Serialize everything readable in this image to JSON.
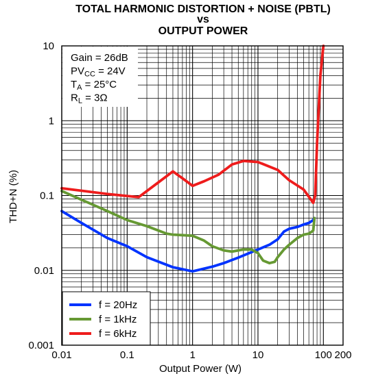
{
  "chart_data": {
    "type": "line",
    "title_lines": [
      "TOTAL HARMONIC DISTORTION + NOISE (PBTL)",
      "vs",
      "OUTPUT POWER"
    ],
    "xlabel": "Output Power (W)",
    "ylabel": "THD+N (%)",
    "x_scale": "log",
    "y_scale": "log",
    "xlim": [
      0.01,
      200
    ],
    "ylim": [
      0.001,
      10
    ],
    "x_ticks": [
      {
        "value": 0.01,
        "label": "0.01"
      },
      {
        "value": 0.1,
        "label": "0.1"
      },
      {
        "value": 1,
        "label": "1"
      },
      {
        "value": 10,
        "label": "10"
      },
      {
        "value": 100,
        "label": "100"
      },
      {
        "value": 200,
        "label": "200"
      }
    ],
    "y_ticks": [
      {
        "value": 0.001,
        "label": "0.001"
      },
      {
        "value": 0.01,
        "label": "0.01"
      },
      {
        "value": 0.1,
        "label": "0.1"
      },
      {
        "value": 1,
        "label": "1"
      },
      {
        "value": 10,
        "label": "10"
      }
    ],
    "grid": true,
    "legend_position": "bottom-left",
    "conditions": [
      {
        "key": "gain",
        "parts": [
          {
            "t": "Gain = 26dB"
          }
        ]
      },
      {
        "key": "pvcc",
        "parts": [
          {
            "t": "PV"
          },
          {
            "t": "CC",
            "sub": true
          },
          {
            "t": " = 24V"
          }
        ]
      },
      {
        "key": "ta",
        "parts": [
          {
            "t": "T"
          },
          {
            "t": "A",
            "sub": true
          },
          {
            "t": " = 25°C"
          }
        ]
      },
      {
        "key": "rl",
        "parts": [
          {
            "t": "R"
          },
          {
            "t": "L",
            "sub": true
          },
          {
            "t": " = 3Ω"
          }
        ]
      }
    ],
    "series": [
      {
        "name": "f = 20Hz",
        "color": "#0033ff",
        "x": [
          0.01,
          0.02,
          0.05,
          0.1,
          0.2,
          0.5,
          1,
          2,
          3,
          5,
          10,
          15,
          20,
          25,
          30,
          40,
          50,
          60,
          70,
          73
        ],
        "y": [
          0.062,
          0.043,
          0.027,
          0.021,
          0.015,
          0.011,
          0.0097,
          0.0112,
          0.0125,
          0.0148,
          0.019,
          0.022,
          0.026,
          0.033,
          0.036,
          0.038,
          0.041,
          0.043,
          0.047,
          0.05
        ]
      },
      {
        "name": "f = 1kHz",
        "color": "#669933",
        "x": [
          0.01,
          0.02,
          0.05,
          0.1,
          0.2,
          0.4,
          0.5,
          1,
          1.5,
          2,
          3,
          4,
          6,
          8,
          10,
          12,
          15,
          18,
          20,
          25,
          30,
          40,
          50,
          60,
          70,
          73
        ],
        "y": [
          0.115,
          0.088,
          0.062,
          0.047,
          0.039,
          0.031,
          0.03,
          0.029,
          0.025,
          0.021,
          0.0185,
          0.0178,
          0.019,
          0.019,
          0.017,
          0.0135,
          0.0125,
          0.013,
          0.015,
          0.019,
          0.022,
          0.027,
          0.03,
          0.031,
          0.034,
          0.05
        ]
      },
      {
        "name": "f = 6kHz",
        "color": "#ee1c1c",
        "x": [
          0.01,
          0.05,
          0.15,
          0.3,
          0.5,
          0.7,
          1,
          1.5,
          2.5,
          4,
          6,
          10,
          20,
          30,
          50,
          70,
          75,
          80,
          85,
          90,
          100
        ],
        "y": [
          0.125,
          0.105,
          0.095,
          0.15,
          0.21,
          0.17,
          0.135,
          0.155,
          0.19,
          0.26,
          0.29,
          0.28,
          0.22,
          0.16,
          0.12,
          0.08,
          0.1,
          0.5,
          1.5,
          4,
          10
        ]
      }
    ]
  }
}
